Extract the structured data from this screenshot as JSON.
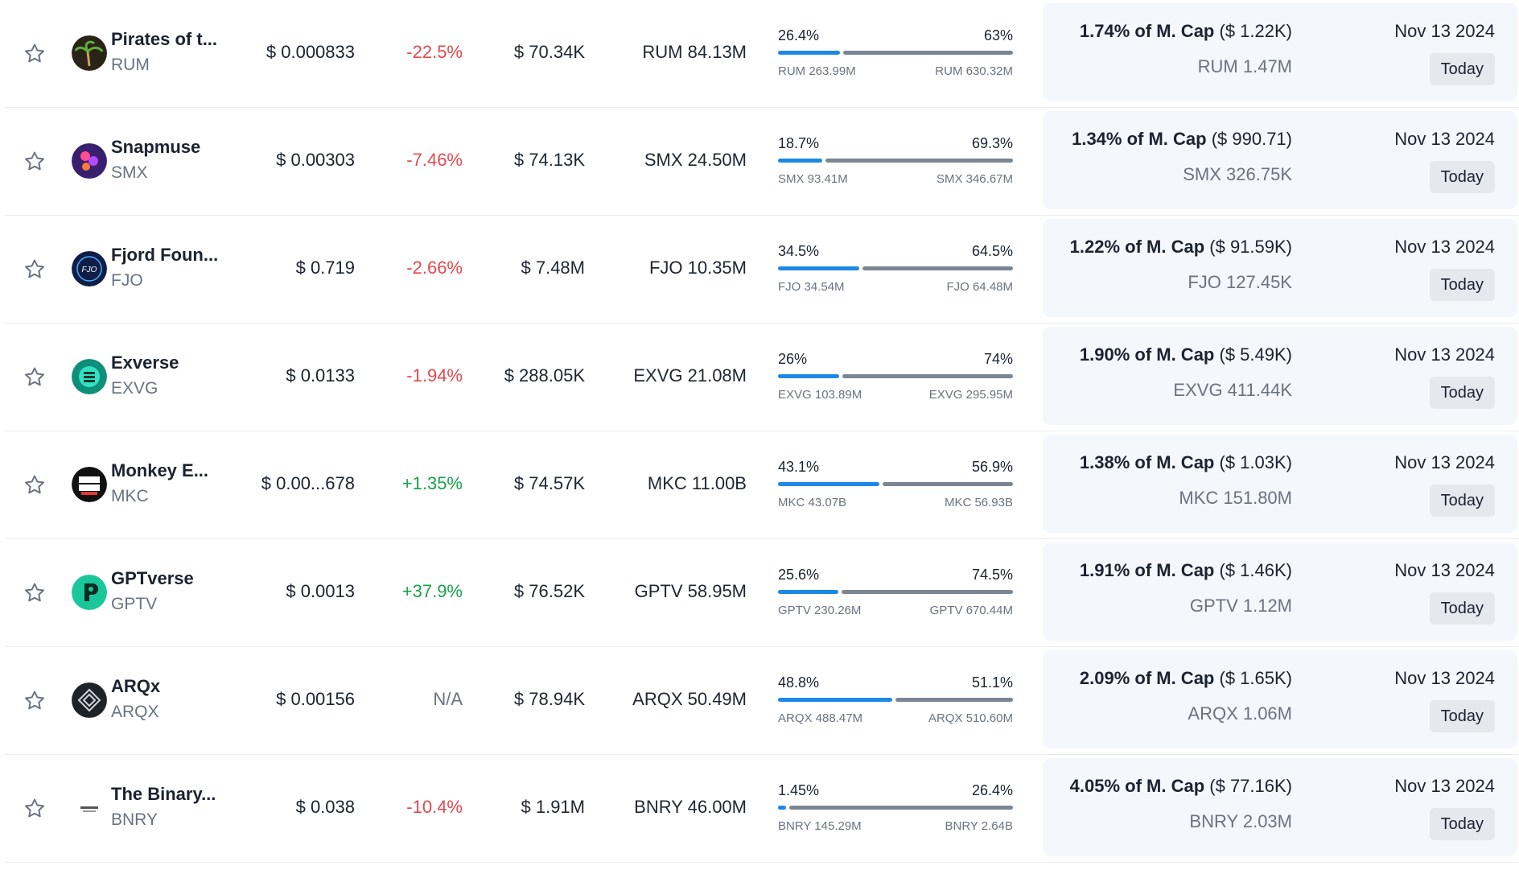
{
  "colors": {
    "negative": "#e5484d",
    "positive": "#16a34a",
    "bar_left": "#1e88e5",
    "bar_right": "#7b8694"
  },
  "rows": [
    {
      "name": "Pirates of t...",
      "symbol": "RUM",
      "icon": "palm-tree-logo",
      "price": "$ 0.000833",
      "change": "-22.5%",
      "change_dir": "neg",
      "volume": "$ 70.34K",
      "supply": "RUM 84.13M",
      "pct_left": "26.4%",
      "pct_right": "63%",
      "left_share": 0.264,
      "right_share": 0.63,
      "amt_left": "RUM 263.99M",
      "amt_right": "RUM 630.32M",
      "unlock_pct": "1.74% of M. Cap",
      "unlock_usd": "($ 1.22K)",
      "unlock_amt": "RUM 1.47M",
      "date": "Nov 13 2024",
      "today": "Today"
    },
    {
      "name": "Snapmuse",
      "symbol": "SMX",
      "icon": "snapmuse-logo",
      "price": "$ 0.00303",
      "change": "-7.46%",
      "change_dir": "neg",
      "volume": "$ 74.13K",
      "supply": "SMX 24.50M",
      "pct_left": "18.7%",
      "pct_right": "69.3%",
      "left_share": 0.187,
      "right_share": 0.693,
      "amt_left": "SMX 93.41M",
      "amt_right": "SMX 346.67M",
      "unlock_pct": "1.34% of M. Cap",
      "unlock_usd": "($ 990.71)",
      "unlock_amt": "SMX 326.75K",
      "date": "Nov 13 2024",
      "today": "Today"
    },
    {
      "name": "Fjord Foun...",
      "symbol": "FJO",
      "icon": "fjord-logo",
      "price": "$ 0.719",
      "change": "-2.66%",
      "change_dir": "neg",
      "volume": "$ 7.48M",
      "supply": "FJO 10.35M",
      "pct_left": "34.5%",
      "pct_right": "64.5%",
      "left_share": 0.345,
      "right_share": 0.645,
      "amt_left": "FJO 34.54M",
      "amt_right": "FJO 64.48M",
      "unlock_pct": "1.22% of M. Cap",
      "unlock_usd": "($ 91.59K)",
      "unlock_amt": "FJO 127.45K",
      "date": "Nov 13 2024",
      "today": "Today"
    },
    {
      "name": "Exverse",
      "symbol": "EXVG",
      "icon": "exverse-logo",
      "price": "$ 0.0133",
      "change": "-1.94%",
      "change_dir": "neg",
      "volume": "$ 288.05K",
      "supply": "EXVG 21.08M",
      "pct_left": "26%",
      "pct_right": "74%",
      "left_share": 0.26,
      "right_share": 0.74,
      "amt_left": "EXVG 103.89M",
      "amt_right": "EXVG 295.95M",
      "unlock_pct": "1.90% of M. Cap",
      "unlock_usd": "($ 5.49K)",
      "unlock_amt": "EXVG 411.44K",
      "date": "Nov 13 2024",
      "today": "Today"
    },
    {
      "name": "Monkey E...",
      "symbol": "MKC",
      "icon": "monkey-empire-logo",
      "price": "$ 0.00...678",
      "change": "+1.35%",
      "change_dir": "pos",
      "volume": "$ 74.57K",
      "supply": "MKC 11.00B",
      "pct_left": "43.1%",
      "pct_right": "56.9%",
      "left_share": 0.431,
      "right_share": 0.569,
      "amt_left": "MKC 43.07B",
      "amt_right": "MKC 56.93B",
      "unlock_pct": "1.38% of M. Cap",
      "unlock_usd": "($ 1.03K)",
      "unlock_amt": "MKC 151.80M",
      "date": "Nov 13 2024",
      "today": "Today"
    },
    {
      "name": "GPTverse",
      "symbol": "GPTV",
      "icon": "gptverse-logo",
      "price": "$ 0.0013",
      "change": "+37.9%",
      "change_dir": "pos",
      "volume": "$ 76.52K",
      "supply": "GPTV 58.95M",
      "pct_left": "25.6%",
      "pct_right": "74.5%",
      "left_share": 0.256,
      "right_share": 0.745,
      "amt_left": "GPTV 230.26M",
      "amt_right": "GPTV 670.44M",
      "unlock_pct": "1.91% of M. Cap",
      "unlock_usd": "($ 1.46K)",
      "unlock_amt": "GPTV 1.12M",
      "date": "Nov 13 2024",
      "today": "Today"
    },
    {
      "name": "ARQx",
      "symbol": "ARQX",
      "icon": "arqx-logo",
      "price": "$ 0.00156",
      "change": "N/A",
      "change_dir": "na",
      "volume": "$ 78.94K",
      "supply": "ARQX 50.49M",
      "pct_left": "48.8%",
      "pct_right": "51.1%",
      "left_share": 0.488,
      "right_share": 0.511,
      "amt_left": "ARQX 488.47M",
      "amt_right": "ARQX 510.60M",
      "unlock_pct": "2.09% of M. Cap",
      "unlock_usd": "($ 1.65K)",
      "unlock_amt": "ARQX 1.06M",
      "date": "Nov 13 2024",
      "today": "Today"
    },
    {
      "name": "The Binary...",
      "symbol": "BNRY",
      "icon": "binary-logo",
      "price": "$ 0.038",
      "change": "-10.4%",
      "change_dir": "neg",
      "volume": "$ 1.91M",
      "supply": "BNRY 46.00M",
      "pct_left": "1.45%",
      "pct_right": "26.4%",
      "left_share": 0.0145,
      "right_share": 0.264,
      "amt_left": "BNRY 145.29M",
      "amt_right": "BNRY 2.64B",
      "unlock_pct": "4.05% of M. Cap",
      "unlock_usd": "($ 77.16K)",
      "unlock_amt": "BNRY 2.03M",
      "date": "Nov 13 2024",
      "today": "Today"
    }
  ]
}
